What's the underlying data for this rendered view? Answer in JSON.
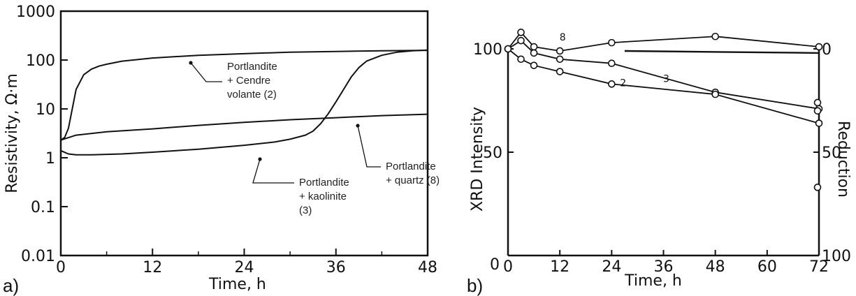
{
  "chart_data": [
    {
      "panel": "a)",
      "type": "line",
      "xlabel": "Time, h",
      "ylabel": "Resistivity, Ω·m",
      "yscale": "log",
      "xlim": [
        0,
        48
      ],
      "ylim": [
        0.01,
        1000
      ],
      "xticks": [
        "0",
        "12",
        "24",
        "36",
        "48"
      ],
      "yticks": [
        "0.01",
        "0.1",
        "1",
        "10",
        "100",
        "1000"
      ],
      "series": [
        {
          "id": "fly-ash",
          "x": [
            0,
            0.5,
            1,
            1.5,
            2,
            3,
            4,
            5,
            6,
            8,
            12,
            18,
            24,
            30,
            36,
            42,
            48
          ],
          "values": [
            2.3,
            2.6,
            4,
            10,
            25,
            50,
            65,
            75,
            82,
            95,
            110,
            125,
            135,
            145,
            150,
            155,
            158
          ]
        },
        {
          "id": "quartz",
          "x": [
            0,
            2,
            6,
            12,
            18,
            24,
            30,
            36,
            42,
            48
          ],
          "values": [
            2.3,
            2.9,
            3.4,
            3.9,
            4.6,
            5.3,
            6.0,
            6.6,
            7.3,
            7.8
          ]
        },
        {
          "id": "kaolinite",
          "x": [
            0,
            1,
            2,
            4,
            8,
            12,
            18,
            24,
            28,
            30,
            32,
            33,
            34,
            35,
            36,
            37,
            38,
            39,
            40,
            42,
            44,
            46,
            48
          ],
          "values": [
            1.4,
            1.2,
            1.15,
            1.15,
            1.2,
            1.3,
            1.5,
            1.8,
            2.1,
            2.4,
            2.9,
            3.5,
            5,
            8,
            14,
            25,
            45,
            70,
            95,
            125,
            145,
            155,
            160
          ]
        }
      ],
      "annotations": [
        {
          "text": [
            "Portlandite",
            "+ Cendre",
            "volante (2)"
          ]
        },
        {
          "text": [
            "Portlandite",
            "+ kaolinite",
            "(3)"
          ]
        },
        {
          "text": [
            "Portlandite",
            "+ quartz (8)"
          ]
        }
      ]
    },
    {
      "panel": "b)",
      "type": "line",
      "xlabel": "Time, h",
      "ylabel": "XRD Intensity",
      "y2label": "Reduction",
      "xlim": [
        0,
        72
      ],
      "ylim": [
        0,
        100
      ],
      "xticks": [
        "0",
        "12",
        "24",
        "36",
        "48",
        "60",
        "72"
      ],
      "yticks": [
        "0",
        "50",
        "100"
      ],
      "y2ticks": [
        "0",
        "50",
        "100"
      ],
      "series": [
        {
          "label": "8",
          "x": [
            0,
            3,
            6,
            12,
            24,
            48,
            72
          ],
          "values": [
            100,
            108,
            101,
            99,
            103,
            106,
            101
          ]
        },
        {
          "label": "3",
          "x": [
            0,
            3,
            6,
            12,
            24,
            48,
            72
          ],
          "values": [
            100,
            104,
            98,
            95,
            93,
            79,
            71
          ]
        },
        {
          "label": "2",
          "x": [
            0,
            3,
            6,
            12,
            24,
            48,
            72
          ],
          "values": [
            100,
            95,
            92,
            89,
            83,
            78,
            64
          ]
        }
      ],
      "reduction_line": {
        "x": [
          27,
          72
        ],
        "values": [
          99,
          98
        ]
      },
      "right_edge_points": [
        74,
        70,
        33
      ]
    }
  ]
}
